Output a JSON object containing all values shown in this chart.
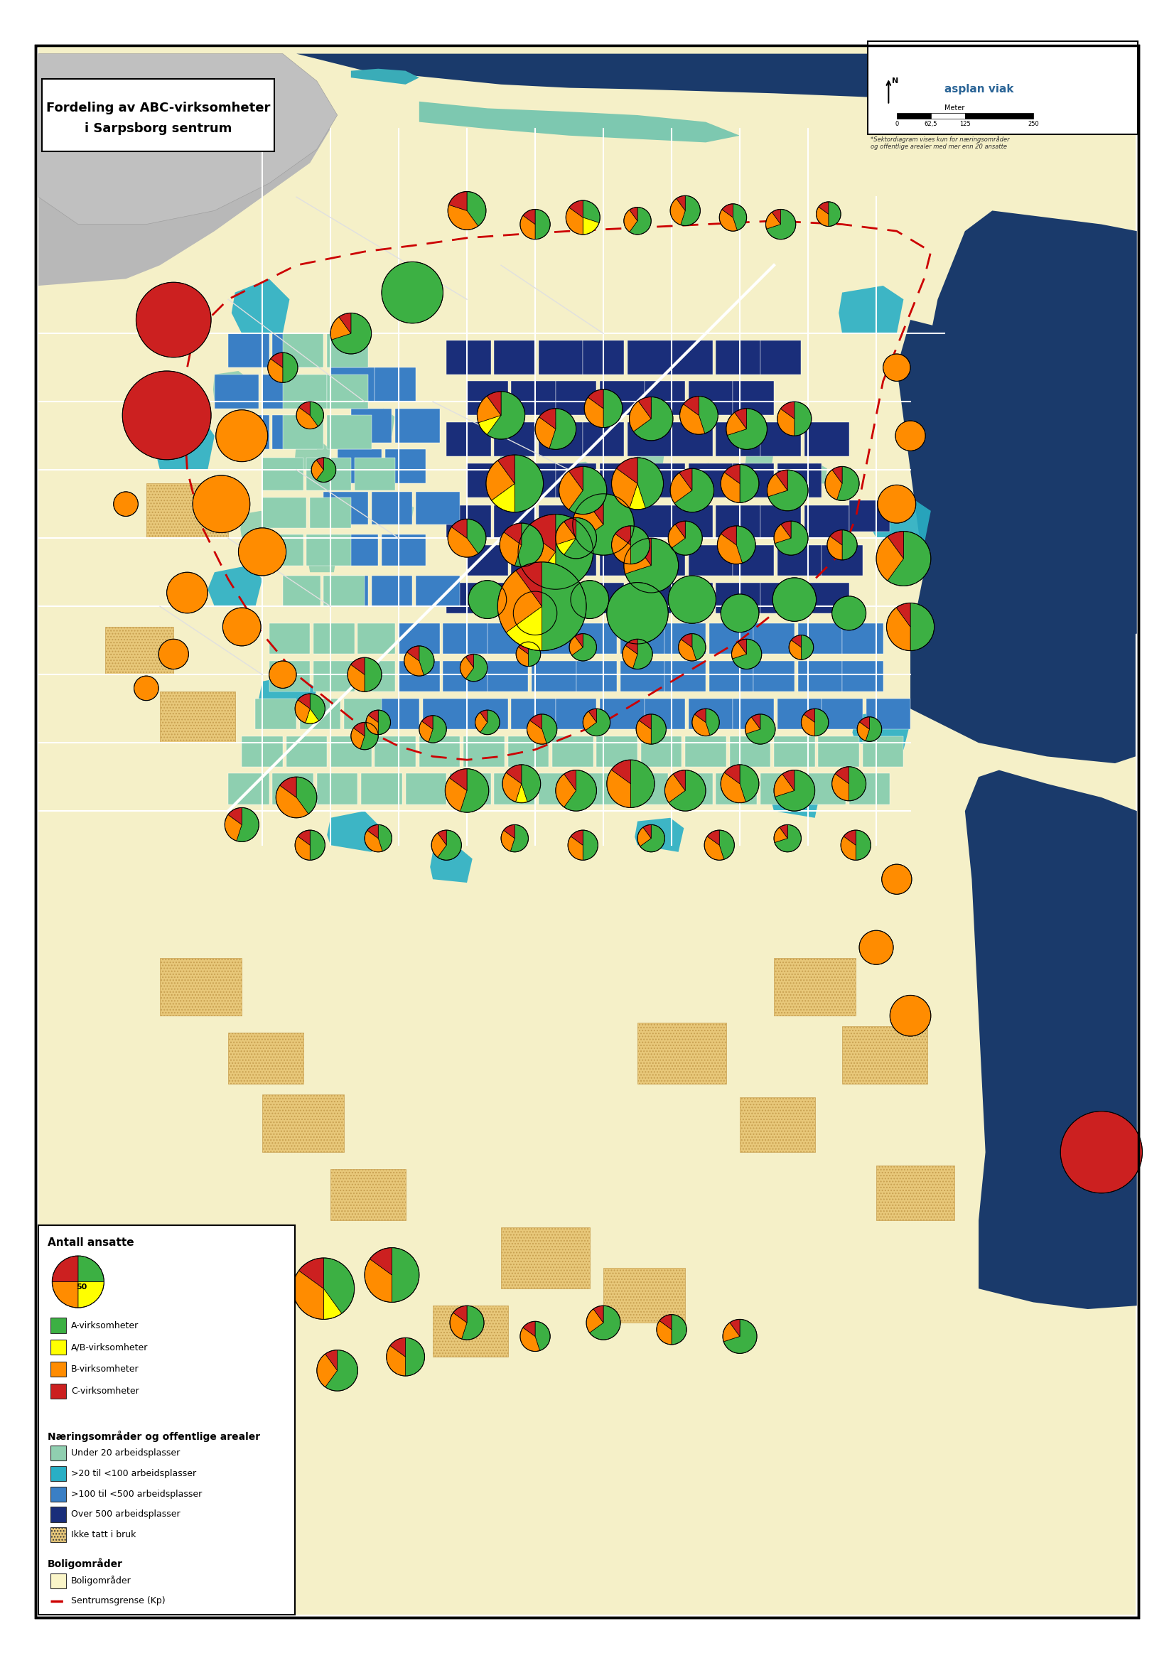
{
  "title_line1": "Fordeling av ABC-virksomheter",
  "title_line2": "i Sarpsborg sentrum",
  "title_fontsize": 13,
  "title_fontweight": "bold",
  "background_outer": "#ffffff",
  "background_map": "#f5f0d8",
  "border_color": "#000000",
  "map_colors": {
    "water_dark": "#1a3a6b",
    "water_medium": "#2d6b8a",
    "light_blue": "#4db3c8",
    "pale_teal": "#8ecfb0",
    "gray": "#b0b0b0",
    "light_yellow": "#faf5c8",
    "orange_dotted": "#e8a86c",
    "teal_area": "#3aacb8",
    "blue_area": "#4a7fbf",
    "dark_blue": "#1a2e7a"
  },
  "pie_colors": {
    "A": "#3cb043",
    "AB": "#ffff00",
    "B": "#ff8c00",
    "C": "#cc2020"
  },
  "legend": {
    "antall_title": "Antall ansatte",
    "pie_label": "50",
    "categories": [
      "A-virksomheter",
      "A/B-virksomheter",
      "B-virksomheter",
      "C-virksomheter"
    ],
    "cat_colors": [
      "#3cb043",
      "#ffff00",
      "#ff8c00",
      "#cc2020"
    ],
    "narings_title": "Næringsområder og offentlige arealer",
    "narings": [
      {
        "label": "Under 20 arbeidsplasser",
        "color": "#90cfb0",
        "hatch": null
      },
      {
        "label": ">20 til <100 arbeidsplasser",
        "color": "#29afc5",
        "hatch": null
      },
      {
        "label": ">100 til <500 arbeidsplasser",
        "color": "#3a7fc5",
        "hatch": null
      },
      {
        "label": "Over 500 arbeidsplasser",
        "color": "#1a2e7a",
        "hatch": null
      },
      {
        "label": "Ikke tatt i bruk",
        "color": "#e8c87a",
        "hatch": "...."
      }
    ],
    "bolig_title": "Boligområder",
    "bolig": [
      {
        "label": "Boligområder",
        "color": "#faf5c8",
        "hatch": null
      },
      {
        "label": "Sentrumsgrense (Kp)",
        "color": "#cc0000",
        "linestyle": "--"
      }
    ]
  },
  "scalebar": {
    "labels": [
      "0",
      "62,5",
      "125",
      "250"
    ],
    "unit": "Meter"
  },
  "north_arrow": true,
  "asplan_viak_logo": true,
  "footnote": "*Sektordiagram vises kun for næringsområder\nog offentlige arealer med mer enn 20 ansatte"
}
